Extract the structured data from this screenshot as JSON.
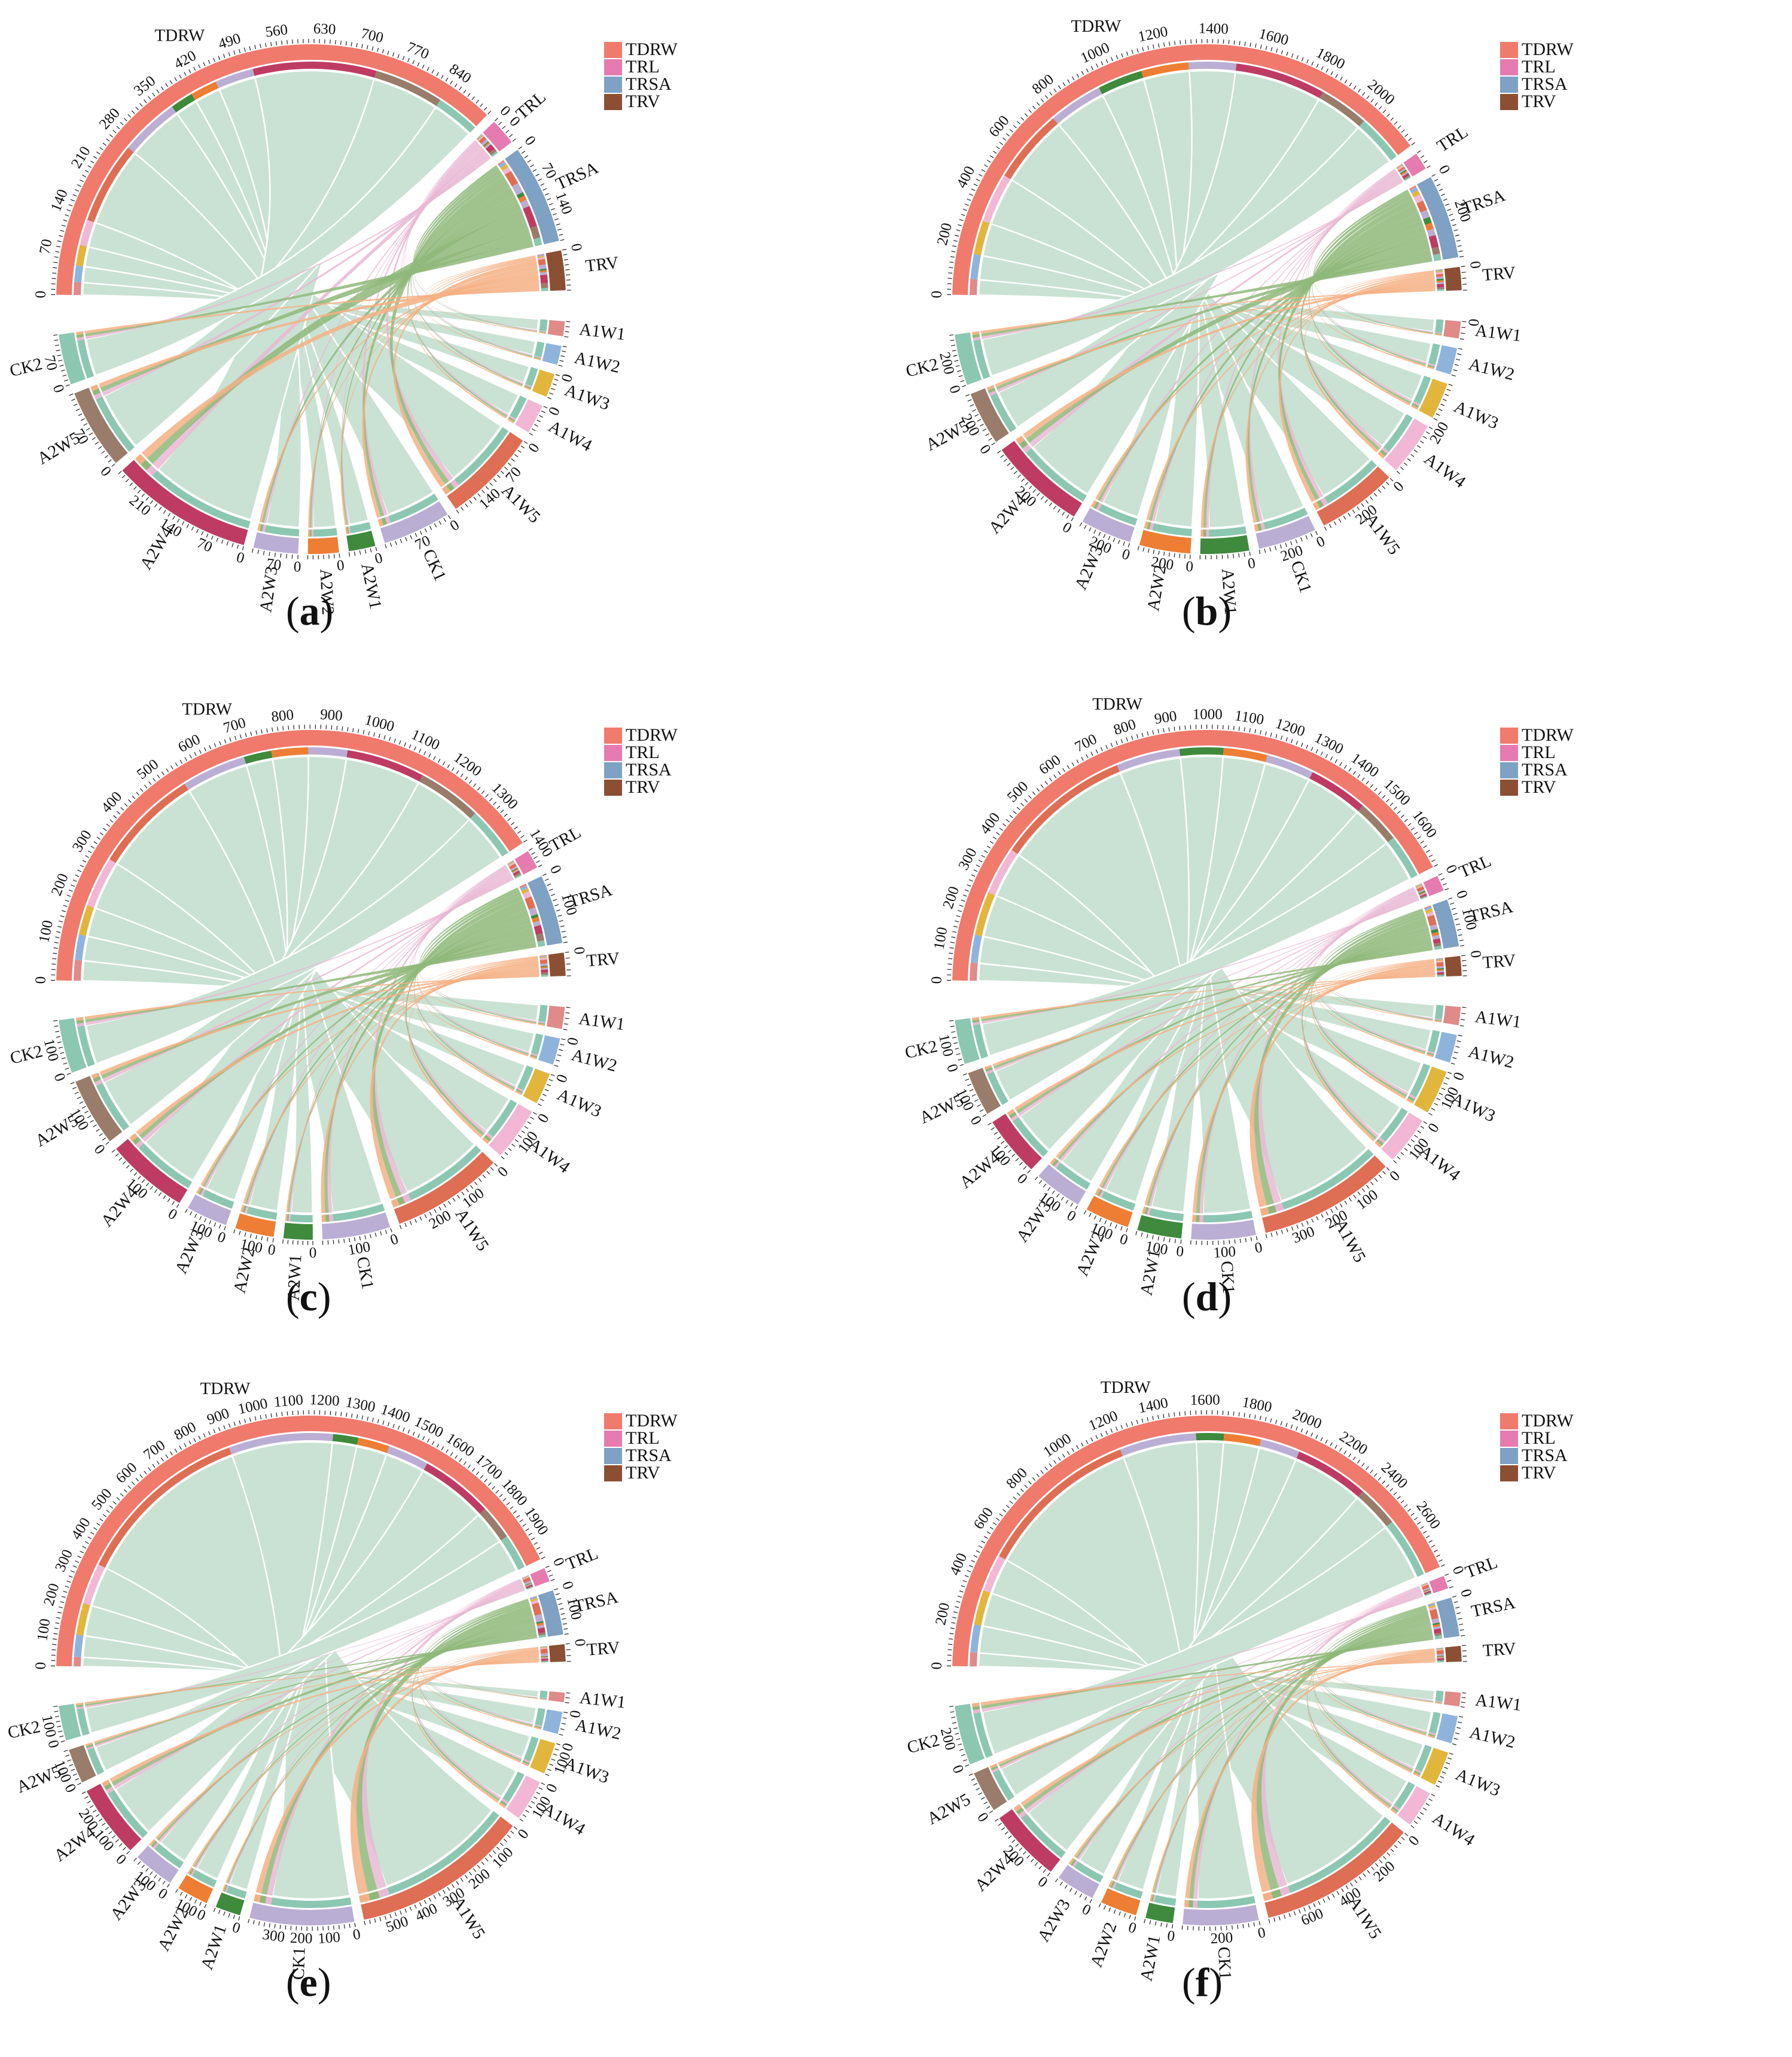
{
  "figure": {
    "legend": [
      {
        "label": "TDRW",
        "color": "#F07A6C"
      },
      {
        "label": "TRL",
        "color": "#E57BAE"
      },
      {
        "label": "TRSA",
        "color": "#7EA1C4"
      },
      {
        "label": "TRV",
        "color": "#8B4F33"
      }
    ],
    "link_colors": {
      "TDRW": "#C9E2D3",
      "TRL": "#E9B8D4",
      "TRSA": "#8FB87A",
      "TRV": "#F5B084"
    }
  },
  "chart_data": [
    {
      "type": "chord",
      "panel": "a",
      "caption": "a",
      "traits": [
        {
          "name": "TDRW",
          "total": 880,
          "tick_step": 70,
          "tick_labels": [
            "0",
            "70",
            "140",
            "210",
            "280",
            "350",
            "420",
            "490",
            "560",
            "630",
            "700",
            "770",
            "840"
          ]
        },
        {
          "name": "TRL",
          "total": 40,
          "tick_step": 0,
          "tick_labels": [
            "0",
            "0"
          ]
        },
        {
          "name": "TRSA",
          "total": 150,
          "tick_step": 70,
          "tick_labels": [
            "0",
            "70",
            "140"
          ]
        },
        {
          "name": "TRV",
          "total": 60,
          "tick_step": 0,
          "tick_labels": [
            "0"
          ]
        }
      ],
      "treatments": [
        {
          "name": "A1W1",
          "value": 25,
          "color": "#E08A8A",
          "tick_labels": []
        },
        {
          "name": "A1W2",
          "value": 32,
          "color": "#8FB4DC",
          "tick_labels": []
        },
        {
          "name": "A1W3",
          "value": 40,
          "color": "#E2B63C",
          "tick_labels": [
            "0"
          ]
        },
        {
          "name": "A1W4",
          "value": 50,
          "color": "#F1B7D4",
          "tick_labels": [
            "0"
          ]
        },
        {
          "name": "A1W5",
          "value": 160,
          "color": "#DE6E54",
          "tick_labels": [
            "0",
            "70",
            "140"
          ]
        },
        {
          "name": "CK1",
          "value": 115,
          "color": "#BBAED4",
          "tick_labels": [
            "0",
            "70"
          ]
        },
        {
          "name": "A2W1",
          "value": 45,
          "color": "#3F8A3C",
          "tick_labels": [
            "0"
          ]
        },
        {
          "name": "A2W2",
          "value": 52,
          "color": "#EE7E33",
          "tick_labels": [
            "0"
          ]
        },
        {
          "name": "A2W3",
          "value": 75,
          "color": "#BBAED4",
          "tick_labels": [
            "0",
            "70"
          ]
        },
        {
          "name": "A2W4",
          "value": 240,
          "color": "#BE3C63",
          "tick_labels": [
            "0",
            "70",
            "140",
            "210"
          ]
        },
        {
          "name": "A2W5",
          "value": 135,
          "color": "#9A7C6A",
          "tick_labels": [
            "0",
            "70"
          ]
        },
        {
          "name": "CK2",
          "value": 85,
          "color": "#8CC7B2",
          "tick_labels": [
            "0",
            "70"
          ]
        }
      ]
    },
    {
      "type": "chord",
      "panel": "b",
      "caption": "b",
      "traits": [
        {
          "name": "TDRW",
          "total": 2150,
          "tick_step": 200,
          "tick_labels": [
            "0",
            "200",
            "400",
            "600",
            "800",
            "1000",
            "1200",
            "1400",
            "1600",
            "1800",
            "2000"
          ]
        },
        {
          "name": "TRL",
          "total": 60,
          "tick_step": 0,
          "tick_labels": []
        },
        {
          "name": "TRSA",
          "total": 290,
          "tick_step": 200,
          "tick_labels": [
            "0",
            "200"
          ]
        },
        {
          "name": "TRV",
          "total": 80,
          "tick_step": 0,
          "tick_labels": [
            "0"
          ]
        }
      ],
      "treatments": [
        {
          "name": "A1W1",
          "value": 70,
          "color": "#E08A8A",
          "tick_labels": [
            "0"
          ]
        },
        {
          "name": "A1W2",
          "value": 110,
          "color": "#8FB4DC",
          "tick_labels": []
        },
        {
          "name": "A1W3",
          "value": 150,
          "color": "#E2B63C",
          "tick_labels": []
        },
        {
          "name": "A1W4",
          "value": 220,
          "color": "#F1B7D4",
          "tick_labels": [
            "200"
          ]
        },
        {
          "name": "A1W5",
          "value": 330,
          "color": "#DE6E54",
          "tick_labels": [
            "0",
            "200"
          ]
        },
        {
          "name": "CK1",
          "value": 240,
          "color": "#BBAED4",
          "tick_labels": [
            "0",
            "200"
          ]
        },
        {
          "name": "A2W1",
          "value": 200,
          "color": "#3F8A3C",
          "tick_labels": [
            "0"
          ]
        },
        {
          "name": "A2W2",
          "value": 210,
          "color": "#EE7E33",
          "tick_labels": [
            "0",
            "200"
          ]
        },
        {
          "name": "A2W3",
          "value": 210,
          "color": "#BBAED4",
          "tick_labels": [
            "0",
            "200"
          ]
        },
        {
          "name": "A2W4",
          "value": 400,
          "color": "#BE3C63",
          "tick_labels": [
            "0",
            "200"
          ]
        },
        {
          "name": "A2W5",
          "value": 220,
          "color": "#9A7C6A",
          "tick_labels": [
            "0",
            "200"
          ]
        },
        {
          "name": "CK2",
          "value": 210,
          "color": "#8CC7B2",
          "tick_labels": [
            "0",
            "200"
          ]
        }
      ]
    },
    {
      "type": "chord",
      "panel": "c",
      "caption": "c",
      "traits": [
        {
          "name": "TDRW",
          "total": 1380,
          "tick_step": 100,
          "tick_labels": [
            "0",
            "100",
            "200",
            "300",
            "400",
            "500",
            "600",
            "700",
            "800",
            "900",
            "1000",
            "1100",
            "1200",
            "1300"
          ]
        },
        {
          "name": "TRL",
          "total": 40,
          "tick_step": 0,
          "tick_labels": [
            "1400"
          ]
        },
        {
          "name": "TRSA",
          "total": 150,
          "tick_step": 100,
          "tick_labels": [
            "0",
            "100"
          ]
        },
        {
          "name": "TRV",
          "total": 50,
          "tick_step": 0,
          "tick_labels": [
            "0"
          ]
        }
      ],
      "treatments": [
        {
          "name": "A1W1",
          "value": 45,
          "color": "#E08A8A",
          "tick_labels": []
        },
        {
          "name": "A1W2",
          "value": 55,
          "color": "#8FB4DC",
          "tick_labels": [
            "0"
          ]
        },
        {
          "name": "A1W3",
          "value": 65,
          "color": "#E2B63C",
          "tick_labels": [
            "0"
          ]
        },
        {
          "name": "A1W4",
          "value": 110,
          "color": "#F1B7D4",
          "tick_labels": [
            "0",
            "100"
          ]
        },
        {
          "name": "A1W5",
          "value": 230,
          "color": "#DE6E54",
          "tick_labels": [
            "0",
            "100",
            "200"
          ]
        },
        {
          "name": "CK1",
          "value": 140,
          "color": "#BBAED4",
          "tick_labels": [
            "0",
            "100"
          ]
        },
        {
          "name": "A2W1",
          "value": 60,
          "color": "#3F8A3C",
          "tick_labels": [
            "0"
          ]
        },
        {
          "name": "A2W2",
          "value": 80,
          "color": "#EE7E33",
          "tick_labels": [
            "0",
            "100"
          ]
        },
        {
          "name": "A2W3",
          "value": 85,
          "color": "#BBAED4",
          "tick_labels": [
            "0",
            "100"
          ]
        },
        {
          "name": "A2W4",
          "value": 170,
          "color": "#BE3C63",
          "tick_labels": [
            "0",
            "100"
          ]
        },
        {
          "name": "A2W5",
          "value": 140,
          "color": "#9A7C6A",
          "tick_labels": [
            "0",
            "100"
          ]
        },
        {
          "name": "CK2",
          "value": 110,
          "color": "#8CC7B2",
          "tick_labels": [
            "0",
            "100"
          ]
        }
      ]
    },
    {
      "type": "chord",
      "panel": "d",
      "caption": "d",
      "traits": [
        {
          "name": "TDRW",
          "total": 1680,
          "tick_step": 100,
          "tick_labels": [
            "0",
            "100",
            "200",
            "300",
            "400",
            "500",
            "600",
            "700",
            "800",
            "900",
            "1000",
            "1100",
            "1200",
            "1300",
            "1400",
            "1500",
            "1600"
          ]
        },
        {
          "name": "TRL",
          "total": 40,
          "tick_step": 0,
          "tick_labels": [
            "0"
          ]
        },
        {
          "name": "TRSA",
          "total": 120,
          "tick_step": 100,
          "tick_labels": [
            "0",
            "100"
          ]
        },
        {
          "name": "TRV",
          "total": 50,
          "tick_step": 0,
          "tick_labels": [
            "0"
          ]
        }
      ],
      "treatments": [
        {
          "name": "A1W1",
          "value": 45,
          "color": "#E08A8A",
          "tick_labels": []
        },
        {
          "name": "A1W2",
          "value": 70,
          "color": "#8FB4DC",
          "tick_labels": []
        },
        {
          "name": "A1W3",
          "value": 110,
          "color": "#E2B63C",
          "tick_labels": [
            "0",
            "100"
          ]
        },
        {
          "name": "A1W4",
          "value": 120,
          "color": "#F1B7D4",
          "tick_labels": [
            "0",
            "100"
          ]
        },
        {
          "name": "A1W5",
          "value": 340,
          "color": "#DE6E54",
          "tick_labels": [
            "0",
            "100",
            "200",
            "300"
          ]
        },
        {
          "name": "CK1",
          "value": 160,
          "color": "#BBAED4",
          "tick_labels": [
            "0",
            "100"
          ]
        },
        {
          "name": "A2W1",
          "value": 110,
          "color": "#3F8A3C",
          "tick_labels": [
            "0",
            "100"
          ]
        },
        {
          "name": "A2W2",
          "value": 110,
          "color": "#EE7E33",
          "tick_labels": [
            "0",
            "100"
          ]
        },
        {
          "name": "A2W3",
          "value": 120,
          "color": "#BBAED4",
          "tick_labels": [
            "0",
            "100"
          ]
        },
        {
          "name": "A2W4",
          "value": 150,
          "color": "#BE3C63",
          "tick_labels": [
            "0",
            "100"
          ]
        },
        {
          "name": "A2W5",
          "value": 110,
          "color": "#9A7C6A",
          "tick_labels": [
            "0",
            "100"
          ]
        },
        {
          "name": "CK2",
          "value": 110,
          "color": "#8CC7B2",
          "tick_labels": [
            "0",
            "100"
          ]
        }
      ]
    },
    {
      "type": "chord",
      "panel": "e",
      "caption": "e",
      "traits": [
        {
          "name": "TDRW",
          "total": 1950,
          "tick_step": 100,
          "tick_labels": [
            "0",
            "100",
            "200",
            "300",
            "400",
            "500",
            "600",
            "700",
            "800",
            "900",
            "1000",
            "1100",
            "1200",
            "1300",
            "1400",
            "1500",
            "1600",
            "1700",
            "1800",
            "1900"
          ]
        },
        {
          "name": "TRL",
          "total": 40,
          "tick_step": 0,
          "tick_labels": [
            "0"
          ]
        },
        {
          "name": "TRSA",
          "total": 130,
          "tick_step": 100,
          "tick_labels": [
            "0",
            "100"
          ]
        },
        {
          "name": "TRV",
          "total": 50,
          "tick_step": 0,
          "tick_labels": [
            "0"
          ]
        }
      ],
      "treatments": [
        {
          "name": "A1W1",
          "value": 30,
          "color": "#E08A8A",
          "tick_labels": []
        },
        {
          "name": "A1W2",
          "value": 70,
          "color": "#8FB4DC",
          "tick_labels": [
            "0"
          ]
        },
        {
          "name": "A1W3",
          "value": 100,
          "color": "#E2B63C",
          "tick_labels": [
            "0",
            "100"
          ]
        },
        {
          "name": "A1W4",
          "value": 130,
          "color": "#F1B7D4",
          "tick_labels": [
            "0",
            "100"
          ]
        },
        {
          "name": "A1W5",
          "value": 560,
          "color": "#DE6E54",
          "tick_labels": [
            "0",
            "100",
            "200",
            "300",
            "400",
            "500"
          ]
        },
        {
          "name": "CK1",
          "value": 330,
          "color": "#BBAED4",
          "tick_labels": [
            "0",
            "100",
            "200",
            "300"
          ]
        },
        {
          "name": "A2W1",
          "value": 80,
          "color": "#3F8A3C",
          "tick_labels": [
            "0"
          ]
        },
        {
          "name": "A2W2",
          "value": 100,
          "color": "#EE7E33",
          "tick_labels": [
            "0",
            "100"
          ]
        },
        {
          "name": "A2W3",
          "value": 130,
          "color": "#BBAED4",
          "tick_labels": [
            "0",
            "100"
          ]
        },
        {
          "name": "A2W4",
          "value": 230,
          "color": "#BE3C63",
          "tick_labels": [
            "0",
            "100",
            "200"
          ]
        },
        {
          "name": "A2W5",
          "value": 110,
          "color": "#9A7C6A",
          "tick_labels": [
            "0",
            "100"
          ]
        },
        {
          "name": "CK2",
          "value": 110,
          "color": "#8CC7B2",
          "tick_labels": [
            "0",
            "100"
          ]
        }
      ]
    },
    {
      "type": "chord",
      "panel": "f",
      "caption": "f",
      "traits": [
        {
          "name": "TDRW",
          "total": 2620,
          "tick_step": 200,
          "tick_labels": [
            "0",
            "200",
            "400",
            "600",
            "800",
            "1000",
            "1200",
            "1400",
            "1600",
            "1800",
            "2000",
            "2200",
            "2400",
            "2600"
          ]
        },
        {
          "name": "TRL",
          "total": 50,
          "tick_step": 0,
          "tick_labels": [
            "0"
          ]
        },
        {
          "name": "TRSA",
          "total": 150,
          "tick_step": 0,
          "tick_labels": [
            "0"
          ]
        },
        {
          "name": "TRV",
          "total": 60,
          "tick_step": 0,
          "tick_labels": []
        }
      ],
      "treatments": [
        {
          "name": "A1W1",
          "value": 60,
          "color": "#E08A8A",
          "tick_labels": []
        },
        {
          "name": "A1W2",
          "value": 120,
          "color": "#8FB4DC",
          "tick_labels": []
        },
        {
          "name": "A1W3",
          "value": 150,
          "color": "#E2B63C",
          "tick_labels": []
        },
        {
          "name": "A1W4",
          "value": 160,
          "color": "#F1B7D4",
          "tick_labels": []
        },
        {
          "name": "A1W5",
          "value": 700,
          "color": "#DE6E54",
          "tick_labels": [
            "0",
            "200",
            "400",
            "600"
          ]
        },
        {
          "name": "CK1",
          "value": 330,
          "color": "#BBAED4",
          "tick_labels": [
            "0",
            "200"
          ]
        },
        {
          "name": "A2W1",
          "value": 120,
          "color": "#3F8A3C",
          "tick_labels": [
            "0"
          ]
        },
        {
          "name": "A2W2",
          "value": 160,
          "color": "#EE7E33",
          "tick_labels": [
            "0"
          ]
        },
        {
          "name": "A2W3",
          "value": 170,
          "color": "#BBAED4",
          "tick_labels": [
            "0"
          ]
        },
        {
          "name": "A2W4",
          "value": 320,
          "color": "#BE3C63",
          "tick_labels": [
            "0",
            "200"
          ]
        },
        {
          "name": "A2W5",
          "value": 180,
          "color": "#9A7C6A",
          "tick_labels": [
            "0"
          ]
        },
        {
          "name": "CK2",
          "value": 260,
          "color": "#8CC7B2",
          "tick_labels": [
            "0",
            "200"
          ]
        }
      ]
    }
  ]
}
